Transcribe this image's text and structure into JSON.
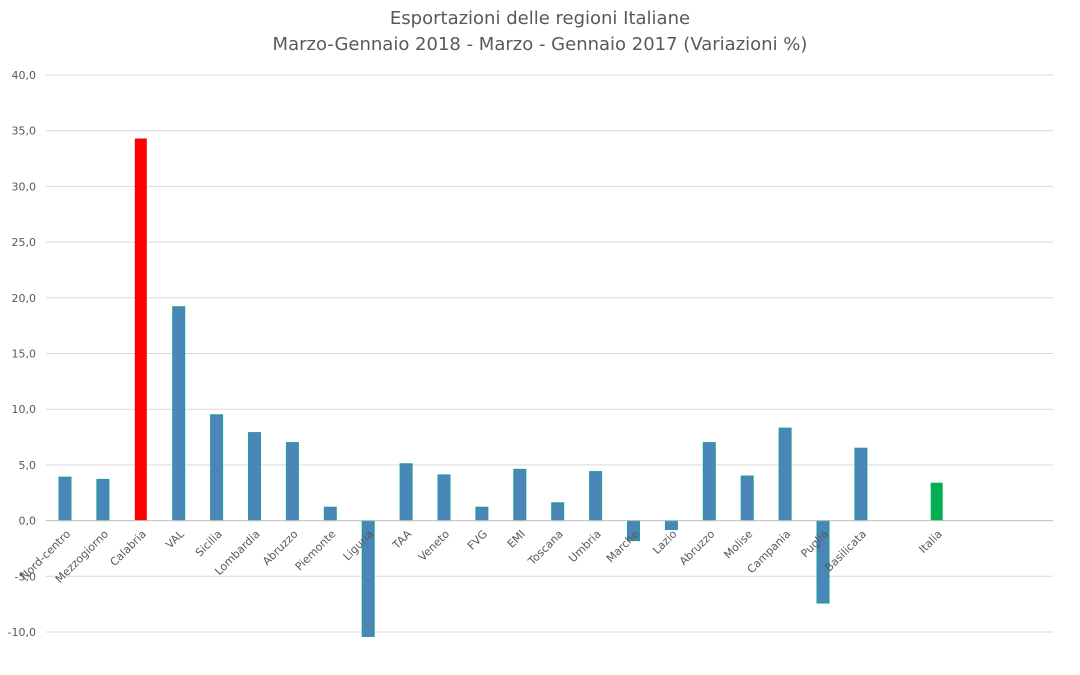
{
  "chart_data": {
    "type": "bar",
    "title": "Esportazioni delle regioni Italiane",
    "subtitle": "Marzo-Gennaio 2018 - Marzo - Gennaio 2017 (Variazioni %)",
    "xlabel": "",
    "ylabel": "",
    "ylim": [
      -10,
      40
    ],
    "yticks": [
      -10,
      -5,
      0,
      5,
      10,
      15,
      20,
      25,
      30,
      35,
      40
    ],
    "ytick_labels": [
      "-10,0",
      "-5,0",
      "0,0",
      "5,0",
      "10,0",
      "15,0",
      "20,0",
      "25,0",
      "30,0",
      "35,0",
      "40,0"
    ],
    "grid": true,
    "legend": "none",
    "categories": [
      "Nord-centro",
      "Mezzogiorno",
      "Calabria",
      "VAL",
      "Sicilia",
      "Lombardia",
      "Abruzzo",
      "Piemonte",
      "Liguria",
      "TAA",
      "Veneto",
      "FVG",
      "EMI",
      "Toscana",
      "Umbria",
      "Marche",
      "Lazio",
      "Abruzzo",
      "Molise",
      "Campania",
      "Puglia",
      "Basilicata",
      "",
      "Italia"
    ],
    "values": [
      3.9,
      3.7,
      34.3,
      19.2,
      9.5,
      7.9,
      7.0,
      1.2,
      -10.4,
      5.1,
      4.1,
      1.2,
      4.6,
      1.6,
      4.4,
      -1.8,
      -0.8,
      7.0,
      4.0,
      8.3,
      -7.4,
      6.5,
      null,
      3.4
    ],
    "colors": [
      "#4a86b8",
      "#4a86b8",
      "#ff0000",
      "#4a86b8",
      "#4a86b8",
      "#4a86b8",
      "#4a86b8",
      "#4a86b8",
      "#4a86b8",
      "#4a86b8",
      "#4a86b8",
      "#4a86b8",
      "#4a86b8",
      "#4a86b8",
      "#4a86b8",
      "#4a86b8",
      "#4a86b8",
      "#4a86b8",
      "#4a86b8",
      "#4a86b8",
      "#4a86b8",
      "#4a86b8",
      "#4a86b8",
      "#00b050"
    ],
    "bar_outline_color": "#1f9b9b",
    "grid_color": "#d9d9d9",
    "axis_color": "#bfbfbf"
  }
}
